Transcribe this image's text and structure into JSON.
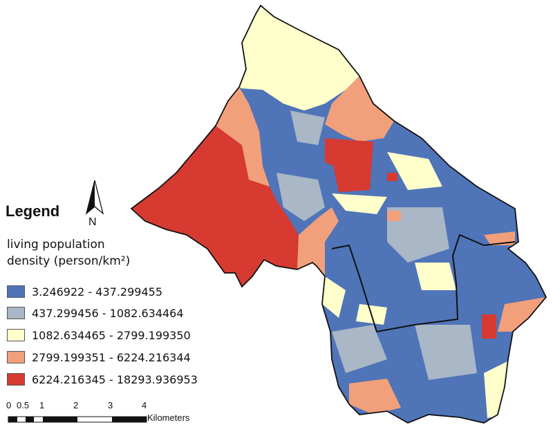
{
  "legend": {
    "title": "Legend",
    "subtitle_line1": "living population",
    "subtitle_line2": "density (person/km²)",
    "classes": [
      {
        "label": "3.246922 - 437.299455",
        "color": "#4F74B8"
      },
      {
        "label": "437.299456 - 1082.634464",
        "color": "#A9B7C6"
      },
      {
        "label": "1082.634465 - 2799.199350",
        "color": "#FFFFCC"
      },
      {
        "label": "2799.199351 - 6224.216344",
        "color": "#F2A07B"
      },
      {
        "label": "6224.216345 - 18293.936953",
        "color": "#D63A31"
      }
    ]
  },
  "north_arrow": {
    "label": "N"
  },
  "scale_bar": {
    "ticks": [
      "0",
      "0.5",
      "1",
      "2",
      "3",
      "4"
    ],
    "unit": "Kilometers"
  }
}
